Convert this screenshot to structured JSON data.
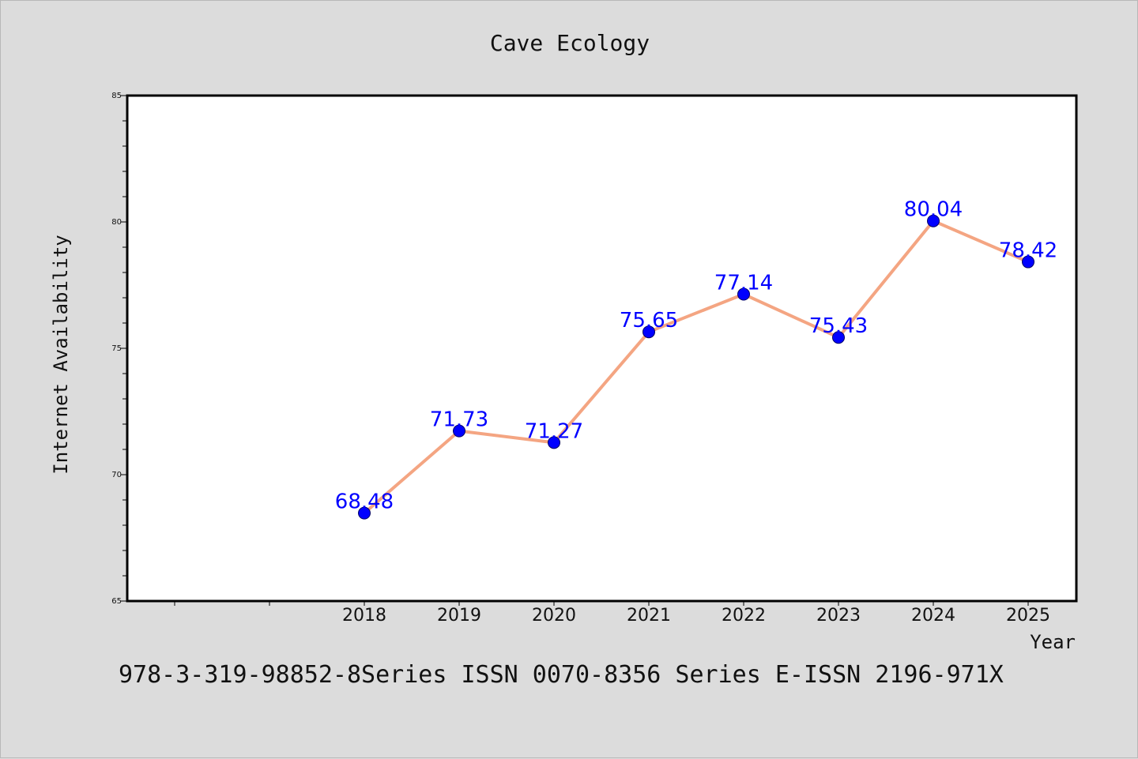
{
  "chart_data": {
    "type": "line",
    "title": "Cave Ecology",
    "xlabel": "Year",
    "ylabel": "Internet Availability",
    "x": [
      "2018",
      "2019",
      "2020",
      "2021",
      "2022",
      "2023",
      "2024",
      "2025"
    ],
    "series": [
      {
        "values": [
          68.48,
          71.73,
          71.27,
          75.65,
          77.14,
          75.43,
          80.04,
          78.42
        ],
        "line_color": "#f4a582",
        "marker_color": "#0000ff",
        "label_color": "#0000ff"
      }
    ],
    "ylim": [
      65,
      85
    ],
    "yticks": [
      "65",
      "70",
      "75",
      "80",
      "85"
    ],
    "grid": false,
    "legend": "none",
    "footer": "978-3-319-98852-8Series ISSN 0070-8356 Series E-ISSN 2196-971X"
  },
  "colors": {
    "background": "#dcdcdc",
    "plot_area": "#ffffff",
    "line": "#f4a582",
    "marker": "#0000ff",
    "data_label": "#0000ff"
  }
}
